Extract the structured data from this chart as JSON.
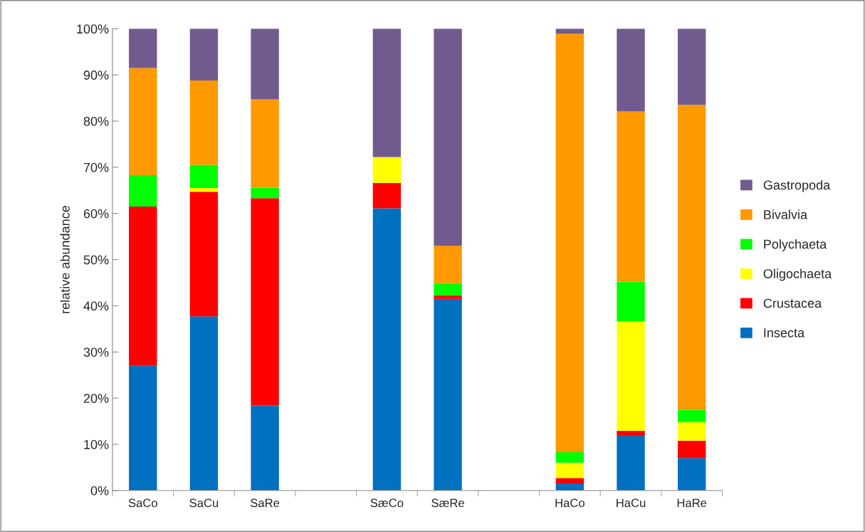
{
  "chart_data": {
    "type": "bar",
    "stacked": true,
    "ylabel": "relative abundance",
    "categories": [
      "SaCo",
      "SaCu",
      "SaRe",
      null,
      "SæCo",
      "SæRe",
      null,
      "HaCo",
      "HaCu",
      "HaRe"
    ],
    "series": [
      {
        "name": "Insecta",
        "color": "#0070c0",
        "values": [
          27.0,
          37.7,
          18.4,
          null,
          61.1,
          41.5,
          null,
          1.5,
          12.0,
          7.0
        ]
      },
      {
        "name": "Crustacea",
        "color": "#ff0000",
        "values": [
          34.5,
          27.0,
          44.9,
          null,
          5.5,
          0.8,
          null,
          1.2,
          0.9,
          3.8
        ]
      },
      {
        "name": "Oligochaeta",
        "color": "#ffff00",
        "values": [
          0,
          0.8,
          0,
          null,
          5.6,
          0,
          null,
          3.3,
          23.7,
          4.0
        ]
      },
      {
        "name": "Polychaeta",
        "color": "#00ff00",
        "values": [
          6.8,
          5.0,
          2.3,
          null,
          0,
          2.6,
          null,
          2.3,
          8.6,
          2.7
        ]
      },
      {
        "name": "Bivalvia",
        "color": "#ff9900",
        "values": [
          23.2,
          18.3,
          19.1,
          null,
          0,
          8.1,
          null,
          90.6,
          36.9,
          66.0
        ]
      },
      {
        "name": "Gastropoda",
        "color": "#715a8e",
        "values": [
          8.5,
          11.2,
          15.3,
          null,
          27.8,
          47.0,
          null,
          1.1,
          17.9,
          16.5
        ]
      }
    ],
    "ylim": [
      0,
      100
    ],
    "yticks": [
      {
        "value": 0,
        "label": "0%"
      },
      {
        "value": 10,
        "label": "10%"
      },
      {
        "value": 20,
        "label": "20%"
      },
      {
        "value": 30,
        "label": "30%"
      },
      {
        "value": 40,
        "label": "40%"
      },
      {
        "value": 50,
        "label": "50%"
      },
      {
        "value": 60,
        "label": "60%"
      },
      {
        "value": 70,
        "label": "70%"
      },
      {
        "value": 80,
        "label": "80%"
      },
      {
        "value": 90,
        "label": "90%"
      },
      {
        "value": 100,
        "label": "100%"
      }
    ],
    "grid": false,
    "legend": "right"
  }
}
